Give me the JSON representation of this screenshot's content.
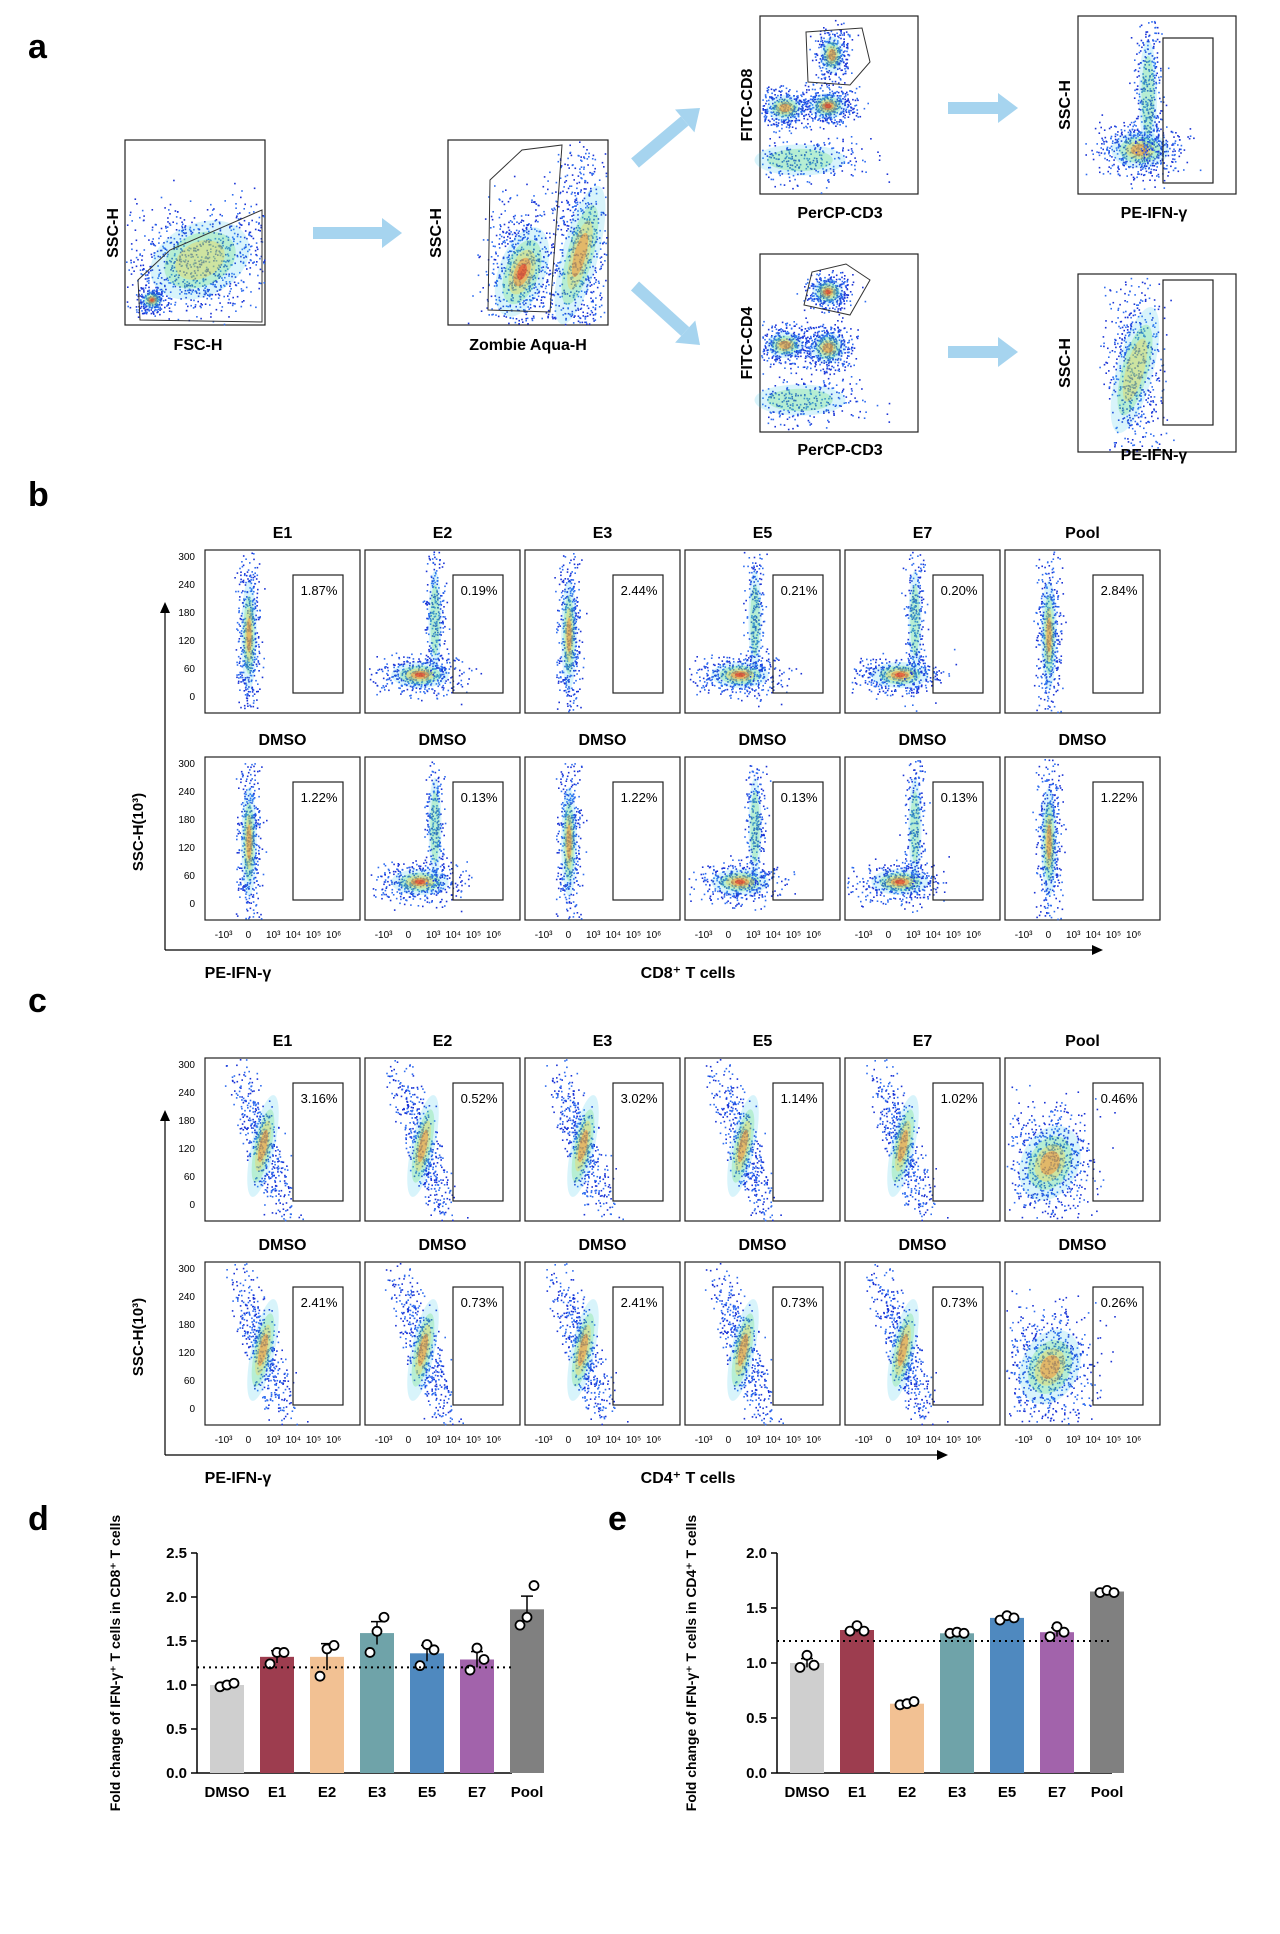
{
  "panel_labels": {
    "a": "a",
    "b": "b",
    "c": "c",
    "d": "d",
    "e": "e"
  },
  "gating": {
    "plot1": {
      "x": "FSC-H",
      "y": "SSC-H"
    },
    "plot2": {
      "x": "Zombie Aqua-H",
      "y": "SSC-H"
    },
    "cd8_plot": {
      "x": "PerCP-CD3",
      "y": "FITC-CD8"
    },
    "cd4_plot": {
      "x": "PerCP-CD3",
      "y": "FITC-CD4"
    },
    "cd8_ifn": {
      "x": "PE-IFN-γ",
      "y": "SSC-H"
    },
    "cd4_ifn": {
      "x": "PE-IFN-γ",
      "y": "SSC-H"
    }
  },
  "flow_b": {
    "population": "CD8⁺ T cells",
    "x_label": "PE-IFN-γ",
    "y_label": "SSC-H(10³)",
    "y_ticks": [
      "300",
      "240",
      "180",
      "120",
      "60",
      "0"
    ],
    "x_ticks": [
      "-10³",
      "0",
      "10³",
      "10⁴",
      "10⁵",
      "10⁶"
    ],
    "top": [
      {
        "label": "E1",
        "pct": "1.87%"
      },
      {
        "label": "E2",
        "pct": "0.19%"
      },
      {
        "label": "E3",
        "pct": "2.44%"
      },
      {
        "label": "E5",
        "pct": "0.21%"
      },
      {
        "label": "E7",
        "pct": "0.20%"
      },
      {
        "label": "Pool",
        "pct": "2.84%"
      }
    ],
    "bottom": [
      {
        "label": "DMSO",
        "pct": "1.22%"
      },
      {
        "label": "DMSO",
        "pct": "0.13%"
      },
      {
        "label": "DMSO",
        "pct": "1.22%"
      },
      {
        "label": "DMSO",
        "pct": "0.13%"
      },
      {
        "label": "DMSO",
        "pct": "0.13%"
      },
      {
        "label": "DMSO",
        "pct": "1.22%"
      }
    ]
  },
  "flow_c": {
    "population": "CD4⁺ T cells",
    "x_label": "PE-IFN-γ",
    "y_label": "SSC-H(10³)",
    "y_ticks": [
      "300",
      "240",
      "180",
      "120",
      "60",
      "0"
    ],
    "x_ticks": [
      "-10³",
      "0",
      "10³",
      "10⁴",
      "10⁵",
      "10⁶"
    ],
    "top": [
      {
        "label": "E1",
        "pct": "3.16%"
      },
      {
        "label": "E2",
        "pct": "0.52%"
      },
      {
        "label": "E3",
        "pct": "3.02%"
      },
      {
        "label": "E5",
        "pct": "1.14%"
      },
      {
        "label": "E7",
        "pct": "1.02%"
      },
      {
        "label": "Pool",
        "pct": "0.46%"
      }
    ],
    "bottom": [
      {
        "label": "DMSO",
        "pct": "2.41%"
      },
      {
        "label": "DMSO",
        "pct": "0.73%"
      },
      {
        "label": "DMSO",
        "pct": "2.41%"
      },
      {
        "label": "DMSO",
        "pct": "0.73%"
      },
      {
        "label": "DMSO",
        "pct": "0.73%"
      },
      {
        "label": "DMSO",
        "pct": "0.26%"
      }
    ]
  },
  "colors": {
    "arrow": "#a6d4ef",
    "DMSO": "#cfcfcf",
    "E1": "#9d3d4f",
    "E2": "#f2c193",
    "E3": "#6fa3a9",
    "E5": "#4f89bf",
    "E7": "#a263ab",
    "Pool": "#808080"
  },
  "chart_data": [
    {
      "type": "bar",
      "panel": "d",
      "ylabel": "Fold change of IFN-γ⁺ T cells in CD8⁺ T cells",
      "categories": [
        "DMSO",
        "E1",
        "E2",
        "E3",
        "E5",
        "E7",
        "Pool"
      ],
      "values": [
        1.0,
        1.32,
        1.32,
        1.59,
        1.36,
        1.29,
        1.86
      ],
      "errors": [
        0.03,
        0.07,
        0.15,
        0.13,
        0.09,
        0.09,
        0.15
      ],
      "points": [
        [
          0.98,
          1.0,
          1.02
        ],
        [
          1.24,
          1.37,
          1.37
        ],
        [
          1.1,
          1.41,
          1.45
        ],
        [
          1.37,
          1.61,
          1.77
        ],
        [
          1.22,
          1.46,
          1.4
        ],
        [
          1.17,
          1.42,
          1.29
        ],
        [
          1.68,
          1.77,
          2.13
        ]
      ],
      "ylim": [
        0,
        2.5
      ],
      "yticks": [
        "0.0",
        "0.5",
        "1.0",
        "1.5",
        "2.0",
        "2.5"
      ],
      "reference_line": 1.2
    },
    {
      "type": "bar",
      "panel": "e",
      "ylabel": "Fold change of IFN-γ⁺ T cells in CD4⁺ T cells",
      "categories": [
        "DMSO",
        "E1",
        "E2",
        "E3",
        "E5",
        "E7",
        "Pool"
      ],
      "values": [
        1.0,
        1.3,
        0.63,
        1.27,
        1.41,
        1.28,
        1.65
      ],
      "errors": [
        0.04,
        0.02,
        0.01,
        0.01,
        0.02,
        0.04,
        0.01
      ],
      "points": [
        [
          0.96,
          1.07,
          0.98
        ],
        [
          1.29,
          1.34,
          1.29
        ],
        [
          0.62,
          0.63,
          0.65
        ],
        [
          1.27,
          1.28,
          1.27
        ],
        [
          1.39,
          1.43,
          1.41
        ],
        [
          1.24,
          1.33,
          1.28
        ],
        [
          1.64,
          1.66,
          1.64
        ]
      ],
      "ylim": [
        0,
        2.0
      ],
      "yticks": [
        "0.0",
        "0.5",
        "1.0",
        "1.5",
        "2.0"
      ],
      "reference_line": 1.2
    }
  ]
}
